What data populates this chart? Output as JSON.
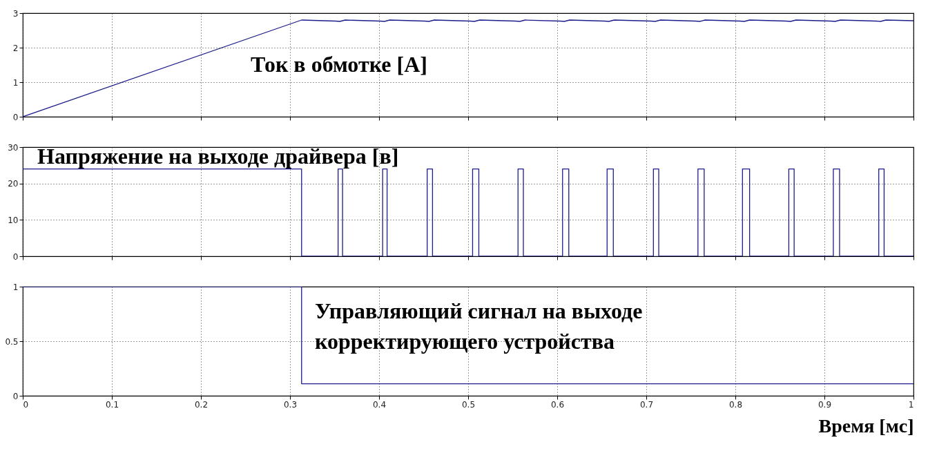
{
  "chart_data": [
    {
      "type": "line",
      "title": "Ток в обмотке [А]",
      "xlim": [
        0,
        1
      ],
      "xticks": [
        0,
        0.1,
        0.2,
        0.3,
        0.4,
        0.5,
        0.6,
        0.7,
        0.8,
        0.9,
        1
      ],
      "ylim": [
        0,
        3
      ],
      "yticks": [
        0,
        1,
        2,
        3
      ],
      "grid": true,
      "tick_labels": "y",
      "series": [
        {
          "color": "#1c1c8c",
          "x": [
            0,
            0.313,
            0.351,
            0.356,
            0.362,
            0.401,
            0.406,
            0.412,
            0.451,
            0.456,
            0.462,
            0.502,
            0.507,
            0.513,
            0.553,
            0.558,
            0.564,
            0.603,
            0.608,
            0.614,
            0.653,
            0.658,
            0.664,
            0.705,
            0.71,
            0.716,
            0.755,
            0.76,
            0.766,
            0.805,
            0.81,
            0.816,
            0.857,
            0.862,
            0.868,
            0.907,
            0.912,
            0.918,
            0.958,
            0.963,
            0.969,
            1
          ],
          "values": [
            0,
            2.8,
            2.77,
            2.76,
            2.8,
            2.77,
            2.76,
            2.8,
            2.77,
            2.76,
            2.8,
            2.77,
            2.76,
            2.8,
            2.77,
            2.76,
            2.8,
            2.77,
            2.76,
            2.8,
            2.77,
            2.76,
            2.8,
            2.77,
            2.76,
            2.8,
            2.77,
            2.76,
            2.8,
            2.77,
            2.76,
            2.8,
            2.77,
            2.76,
            2.8,
            2.77,
            2.76,
            2.8,
            2.77,
            2.76,
            2.8,
            2.78
          ]
        }
      ]
    },
    {
      "type": "step",
      "title": "Напряжение на выходе драйвера [в]",
      "xlim": [
        0,
        1
      ],
      "xticks": [
        0,
        0.1,
        0.2,
        0.3,
        0.4,
        0.5,
        0.6,
        0.7,
        0.8,
        0.9,
        1
      ],
      "ylim": [
        0,
        30
      ],
      "yticks": [
        0,
        10,
        20,
        30
      ],
      "grid": true,
      "tick_labels": "y",
      "series": [
        {
          "color": "#1c1c8c",
          "x": [
            0,
            0.313,
            0.354,
            0.359,
            0.404,
            0.409,
            0.454,
            0.46,
            0.505,
            0.512,
            0.556,
            0.562,
            0.606,
            0.613,
            0.656,
            0.663,
            0.708,
            0.714,
            0.758,
            0.765,
            0.808,
            0.816,
            0.86,
            0.866,
            0.91,
            0.917,
            0.961,
            0.967,
            1
          ],
          "values": [
            24,
            0,
            24,
            0,
            24,
            0,
            24,
            0,
            24,
            0,
            24,
            0,
            24,
            0,
            24,
            0,
            24,
            0,
            24,
            0,
            24,
            0,
            24,
            0,
            24,
            0,
            24,
            0,
            0
          ]
        }
      ]
    },
    {
      "type": "step",
      "title": "Управляющий сигнал на выходе\nкорректирующего устройства",
      "xlabel": "Время [мс]",
      "xlim": [
        0,
        1
      ],
      "xticks": [
        0,
        0.1,
        0.2,
        0.3,
        0.4,
        0.5,
        0.6,
        0.7,
        0.8,
        0.9,
        1
      ],
      "ylim": [
        0,
        1
      ],
      "yticks": [
        0,
        0.5,
        1
      ],
      "grid": true,
      "series": [
        {
          "color": "#1c1c8c",
          "x": [
            0,
            0.313,
            1
          ],
          "values": [
            1,
            0.11,
            0.11
          ]
        }
      ]
    }
  ]
}
